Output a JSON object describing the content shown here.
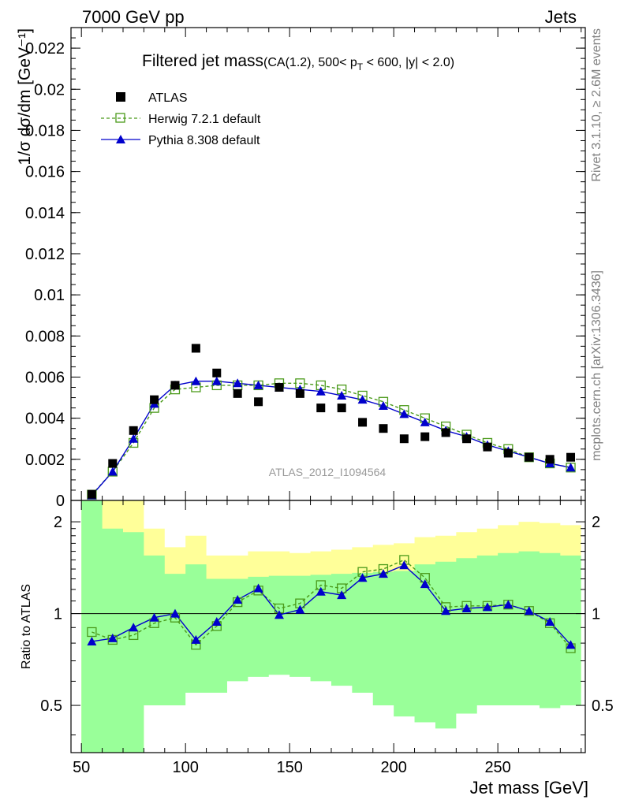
{
  "header": {
    "left": "7000 GeV pp",
    "right": "Jets"
  },
  "title_main": "Filtered jet mass",
  "title_sub_pre": "(CA(1.2), 500< p",
  "title_sub_sub": "T",
  "title_sub_post": " < 600, |y| < 2.0)",
  "side_labels": {
    "rivet": "Rivet 3.1.10, ≥ 2.6M events",
    "mcplots": "mcplots.cern.ch [arXiv:1306.3436]"
  },
  "analysis_label": "ATLAS_2012_I1094564",
  "legend": {
    "atlas": "ATLAS",
    "herwig": "Herwig 7.2.1 default",
    "pythia": "Pythia 8.308 default"
  },
  "axes": {
    "ylabel_main": "1/σ dσ/dm [GeV⁻¹]",
    "ylabel_ratio": "Ratio to ATLAS",
    "xlabel": "Jet mass [GeV]"
  },
  "colors": {
    "data": "#000000",
    "herwig": "#4a9a1a",
    "pythia": "#0000cc",
    "band_inner": "#99ff99",
    "band_outer": "#ffff99"
  },
  "chart_data": {
    "type": "scatter",
    "x_edges": [
      50,
      60,
      70,
      80,
      90,
      100,
      110,
      120,
      130,
      140,
      150,
      160,
      170,
      180,
      190,
      200,
      210,
      220,
      230,
      240,
      250,
      260,
      270,
      280,
      290
    ],
    "x_centers": [
      55,
      65,
      75,
      85,
      95,
      105,
      115,
      125,
      135,
      145,
      155,
      165,
      175,
      185,
      195,
      205,
      215,
      225,
      235,
      245,
      255,
      265,
      275,
      285
    ],
    "xlim": [
      45,
      292
    ],
    "main": {
      "ylim": [
        0,
        0.023
      ],
      "yticks": [
        0,
        0.002,
        0.004,
        0.006,
        0.008,
        0.01,
        0.012,
        0.014,
        0.016,
        0.018,
        0.02,
        0.022
      ],
      "ytick_labels": [
        "0",
        "0.002",
        "0.004",
        "0.006",
        "0.008",
        "0.01",
        "0.012",
        "0.014",
        "0.016",
        "0.018",
        "0.02",
        "0.022"
      ],
      "series": [
        {
          "name": "ATLAS",
          "values": [
            0.0003,
            0.0018,
            0.0034,
            0.0049,
            0.0056,
            0.0074,
            0.0062,
            0.0052,
            0.0048,
            0.0055,
            0.0052,
            0.0045,
            0.0045,
            0.0038,
            0.0035,
            0.003,
            0.0031,
            0.0033,
            0.003,
            0.0026,
            0.0023,
            0.0021,
            0.002,
            0.0021
          ]
        },
        {
          "name": "Herwig 7.2.1 default",
          "values": [
            0.00028,
            0.0014,
            0.0028,
            0.0045,
            0.0054,
            0.0055,
            0.0056,
            0.0056,
            0.0056,
            0.0057,
            0.0057,
            0.0056,
            0.0054,
            0.0051,
            0.0048,
            0.0044,
            0.004,
            0.0036,
            0.0032,
            0.0028,
            0.0025,
            0.0021,
            0.0018,
            0.0016
          ]
        },
        {
          "name": "Pythia 8.308 default",
          "values": [
            0.00025,
            0.0014,
            0.003,
            0.0047,
            0.0056,
            0.0058,
            0.0058,
            0.0057,
            0.0056,
            0.0055,
            0.0054,
            0.0053,
            0.0051,
            0.0049,
            0.0046,
            0.0042,
            0.0038,
            0.0034,
            0.0031,
            0.0027,
            0.0024,
            0.0021,
            0.0018,
            0.0016
          ]
        }
      ]
    },
    "ratio": {
      "ylim": [
        0.35,
        2.35
      ],
      "yticks": [
        0.5,
        1,
        2
      ],
      "ytick_labels": [
        "0.5",
        "1",
        "2"
      ],
      "band_inner_low": [
        0.35,
        0.35,
        0.35,
        0.5,
        0.5,
        0.55,
        0.55,
        0.6,
        0.62,
        0.63,
        0.62,
        0.6,
        0.58,
        0.55,
        0.5,
        0.46,
        0.44,
        0.42,
        0.47,
        0.5,
        0.5,
        0.5,
        0.49,
        0.5
      ],
      "band_inner_high": [
        2.35,
        1.9,
        1.85,
        1.55,
        1.35,
        1.45,
        1.3,
        1.3,
        1.32,
        1.33,
        1.33,
        1.34,
        1.35,
        1.36,
        1.37,
        1.38,
        1.45,
        1.48,
        1.52,
        1.55,
        1.58,
        1.6,
        1.58,
        1.55
      ],
      "band_outer_low": [
        0.35,
        0.35,
        0.35,
        0.65,
        0.68,
        0.68,
        0.75,
        0.76,
        0.77,
        0.78,
        0.77,
        0.74,
        0.7,
        0.66,
        0.62,
        0.6,
        0.57,
        0.66,
        0.7,
        0.69,
        0.67,
        0.62,
        0.55,
        0.55
      ],
      "band_outer_high": [
        2.35,
        2.35,
        2.35,
        1.9,
        1.65,
        1.8,
        1.55,
        1.55,
        1.6,
        1.6,
        1.58,
        1.6,
        1.62,
        1.65,
        1.68,
        1.7,
        1.78,
        1.8,
        1.85,
        1.9,
        1.95,
        2.0,
        1.98,
        1.95
      ],
      "series": [
        {
          "name": "Herwig 7.2.1 default",
          "values": [
            0.87,
            0.82,
            0.85,
            0.93,
            0.97,
            0.79,
            0.91,
            1.09,
            1.19,
            1.04,
            1.08,
            1.24,
            1.21,
            1.37,
            1.4,
            1.5,
            1.31,
            1.05,
            1.06,
            1.06,
            1.07,
            1.02,
            0.93,
            0.77
          ]
        },
        {
          "name": "Pythia 8.308 default",
          "values": [
            0.81,
            0.83,
            0.9,
            0.97,
            1.0,
            0.82,
            0.94,
            1.11,
            1.21,
            0.99,
            1.03,
            1.18,
            1.15,
            1.31,
            1.35,
            1.44,
            1.25,
            1.02,
            1.04,
            1.05,
            1.07,
            1.02,
            0.94,
            0.79
          ]
        }
      ]
    },
    "xticks": [
      50,
      100,
      150,
      200,
      250
    ],
    "xtick_labels": [
      "50",
      "100",
      "150",
      "200",
      "250"
    ]
  }
}
